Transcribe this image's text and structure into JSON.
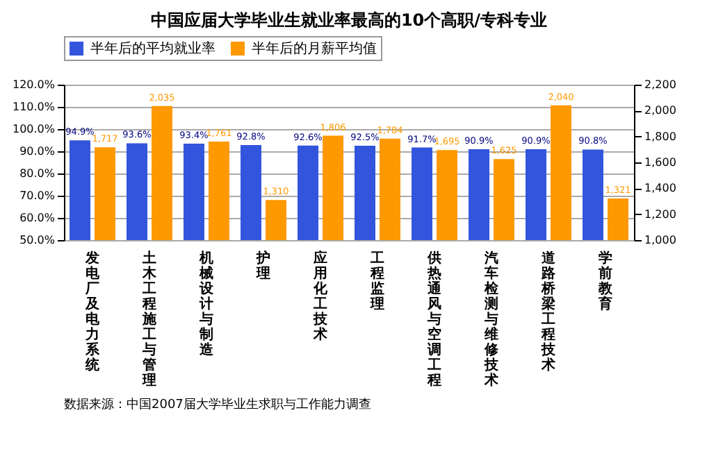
{
  "chart_data": {
    "type": "bar",
    "title": "中国应届大学毕业生就业率最高的10个高职/专科专业",
    "categories": [
      "发电厂及电力系统",
      "土木工程施工与管理",
      "机械设计与制造",
      "护理",
      "应用化工技术",
      "工程监理",
      "供热通风与空调工程",
      "汽车检测与维修技术",
      "道路桥梁工程技术",
      "学前教育"
    ],
    "series": [
      {
        "name": "半年后的平均就业率",
        "color": "#3355dd",
        "values": [
          94.9,
          93.6,
          93.4,
          92.8,
          92.6,
          92.5,
          91.7,
          90.9,
          90.9,
          90.8
        ],
        "value_labels": [
          "94.9%",
          "93.6%",
          "93.4%",
          "92.8%",
          "92.6%",
          "92.5%",
          "91.7%",
          "90.9%",
          "90.9%",
          "90.8%"
        ]
      },
      {
        "name": "半年后的月薪平均值",
        "color": "#ff9900",
        "axis": "y2",
        "values": [
          1717,
          2035,
          1761,
          1310,
          1806,
          1784,
          1695,
          1625,
          2040,
          1321
        ],
        "value_labels": [
          "1,717",
          "2,035",
          "1,761",
          "1,310",
          "1,806",
          "1,784",
          "1,695",
          "1,625",
          "2,040",
          "1,321"
        ]
      }
    ],
    "ylim": [
      50,
      120
    ],
    "yticks": [
      {
        "value": 50,
        "label": "50.0%"
      },
      {
        "value": 60,
        "label": "60.0%"
      },
      {
        "value": 70,
        "label": "70.0%"
      },
      {
        "value": 80,
        "label": "80.0%"
      },
      {
        "value": 90,
        "label": "90.0%"
      },
      {
        "value": 100,
        "label": "100.0%"
      },
      {
        "value": 110,
        "label": "110.0%"
      },
      {
        "value": 120,
        "label": "120.0%"
      }
    ],
    "y2lim": [
      1000,
      2200
    ],
    "y2ticks": [
      {
        "value": 1000,
        "label": "1,000"
      },
      {
        "value": 1200,
        "label": "1,200"
      },
      {
        "value": 1400,
        "label": "1,400"
      },
      {
        "value": 1600,
        "label": "1,600"
      },
      {
        "value": 1800,
        "label": "1,800"
      },
      {
        "value": 2000,
        "label": "2,000"
      },
      {
        "value": 2200,
        "label": "2,200"
      }
    ],
    "grid": "y",
    "legend": "top",
    "annotations": [
      "数据来源：中国2007届大学毕业生求职与工作能力调查"
    ]
  }
}
